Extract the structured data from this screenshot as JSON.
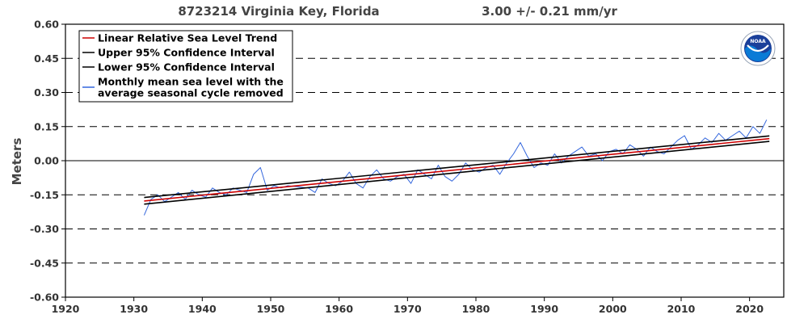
{
  "chart_data": {
    "type": "line",
    "title": "8723214 Virginia Key, Florida",
    "trend_text": "3.00 +/-  0.21 mm/yr",
    "xlabel": "",
    "ylabel": "Meters",
    "xlim": [
      1920,
      2025
    ],
    "ylim": [
      -0.6,
      0.6
    ],
    "x_ticks": [
      "1920",
      "1930",
      "1940",
      "1950",
      "1960",
      "1970",
      "1980",
      "1990",
      "2000",
      "2010",
      "2020"
    ],
    "y_ticks": [
      "0.60",
      "0.45",
      "0.30",
      "0.15",
      "0.00",
      "-0.15",
      "-0.30",
      "-0.45",
      "-0.60"
    ],
    "grid": "horizontal-dashed",
    "legend_position": "top-left",
    "legend": [
      "Linear Relative Sea Level Trend",
      "Upper 95% Confidence Interval",
      "Lower 95% Confidence Interval",
      "Monthly mean sea level with the",
      "average seasonal cycle removed"
    ],
    "logo_text": "NOAA",
    "series": [
      {
        "name": "Linear Relative Sea Level Trend",
        "color": "#cc0000",
        "x": [
          1931.5,
          2022.9
        ],
        "y": [
          -0.177,
          0.097
        ]
      },
      {
        "name": "Upper 95% Confidence Interval",
        "color": "#000000",
        "x": [
          1931.5,
          2022.9
        ],
        "y": [
          -0.162,
          0.109
        ]
      },
      {
        "name": "Lower 95% Confidence Interval",
        "color": "#000000",
        "x": [
          1931.5,
          2022.9
        ],
        "y": [
          -0.191,
          0.085
        ]
      },
      {
        "name": "Monthly mean sea level with the average seasonal cycle removed",
        "color": "#3366dd",
        "x": [
          1931.5,
          1932.5,
          1933.5,
          1934.5,
          1935.5,
          1936.5,
          1937.5,
          1938.5,
          1939.5,
          1940.5,
          1941.5,
          1942.5,
          1943.5,
          1944.5,
          1945.5,
          1946.5,
          1947.5,
          1948.5,
          1949.5,
          1950.5,
          1951.5,
          1952.5,
          1955.5,
          1956.5,
          1957.5,
          1958.5,
          1959.5,
          1960.5,
          1961.5,
          1962.5,
          1963.5,
          1964.5,
          1965.5,
          1966.5,
          1967.5,
          1968.5,
          1969.5,
          1970.5,
          1971.5,
          1972.5,
          1973.5,
          1974.5,
          1975.5,
          1976.5,
          1977.5,
          1978.5,
          1979.5,
          1980.5,
          1981.5,
          1982.5,
          1983.5,
          1984.5,
          1985.5,
          1986.5,
          1987.5,
          1988.5,
          1989.5,
          1990.5,
          1991.5,
          1992.5,
          1993.5,
          1994.5,
          1995.5,
          1996.5,
          1997.5,
          1998.5,
          1999.5,
          2000.5,
          2001.5,
          2002.5,
          2003.5,
          2004.5,
          2005.5,
          2006.5,
          2007.5,
          2008.5,
          2009.5,
          2010.5,
          2011.5,
          2012.5,
          2013.5,
          2014.5,
          2015.5,
          2016.5,
          2017.5,
          2018.5,
          2019.5,
          2020.5,
          2021.5,
          2022.5
        ],
        "y": [
          -0.24,
          -0.17,
          -0.15,
          -0.18,
          -0.16,
          -0.14,
          -0.17,
          -0.13,
          -0.15,
          -0.16,
          -0.12,
          -0.14,
          -0.15,
          -0.12,
          -0.13,
          -0.14,
          -0.06,
          -0.03,
          -0.13,
          -0.11,
          -0.12,
          -0.11,
          -0.12,
          -0.14,
          -0.08,
          -0.1,
          -0.11,
          -0.09,
          -0.05,
          -0.1,
          -0.12,
          -0.07,
          -0.04,
          -0.08,
          -0.09,
          -0.07,
          -0.06,
          -0.1,
          -0.04,
          -0.06,
          -0.08,
          -0.02,
          -0.07,
          -0.09,
          -0.06,
          -0.01,
          -0.04,
          -0.05,
          -0.03,
          -0.02,
          -0.06,
          -0.01,
          0.03,
          0.08,
          0.02,
          -0.03,
          -0.01,
          -0.02,
          0.03,
          -0.01,
          0.02,
          0.04,
          0.06,
          0.02,
          0.03,
          0.0,
          0.04,
          0.05,
          0.03,
          0.07,
          0.05,
          0.02,
          0.06,
          0.04,
          0.03,
          0.06,
          0.09,
          0.11,
          0.05,
          0.07,
          0.1,
          0.08,
          0.12,
          0.09,
          0.11,
          0.13,
          0.1,
          0.15,
          0.12,
          0.18
        ]
      }
    ]
  }
}
